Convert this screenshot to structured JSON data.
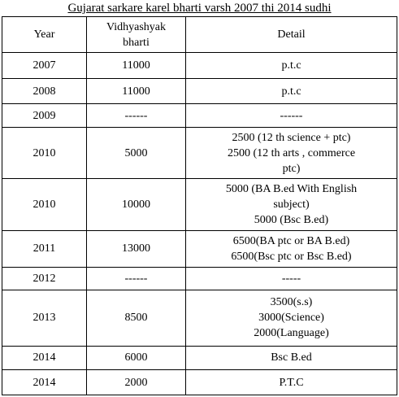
{
  "title": "Gujarat  sarkare  karel bharti varsh 2007 thi 2014 sudhi",
  "table": {
    "headers": {
      "year": "Year",
      "bharti_lines": [
        "Vidhyashyak",
        "bharti"
      ],
      "detail": "Detail"
    },
    "rows": [
      {
        "year": "2007",
        "bharti": "11000",
        "detail": [
          "p.t.c"
        ]
      },
      {
        "year": "2008",
        "bharti": "11000",
        "detail": [
          "p.t.c"
        ]
      },
      {
        "year": "2009",
        "bharti": "------",
        "detail": [
          "------"
        ]
      },
      {
        "year": "2010",
        "bharti": "5000",
        "detail": [
          "2500 (12 th science + ptc)",
          "2500 (12 th arts , commerce",
          "ptc)"
        ]
      },
      {
        "year": "2010",
        "bharti": "10000",
        "detail": [
          "5000 (BA B.ed  With English",
          "subject)",
          "5000 (Bsc B.ed)"
        ]
      },
      {
        "year": "2011",
        "bharti": "13000",
        "detail": [
          "6500(BA ptc or BA B.ed)",
          "6500(Bsc ptc or Bsc B.ed)"
        ]
      },
      {
        "year": "2012",
        "bharti": "------",
        "detail": [
          "-----"
        ]
      },
      {
        "year": "2013",
        "bharti": "8500",
        "detail": [
          "3500(s.s)",
          "3000(Science)",
          "2000(Language)"
        ]
      },
      {
        "year": "2014",
        "bharti": "6000",
        "detail": [
          "Bsc B.ed"
        ]
      },
      {
        "year": "2014",
        "bharti": "2000",
        "detail": [
          "P.T.C"
        ]
      }
    ]
  }
}
